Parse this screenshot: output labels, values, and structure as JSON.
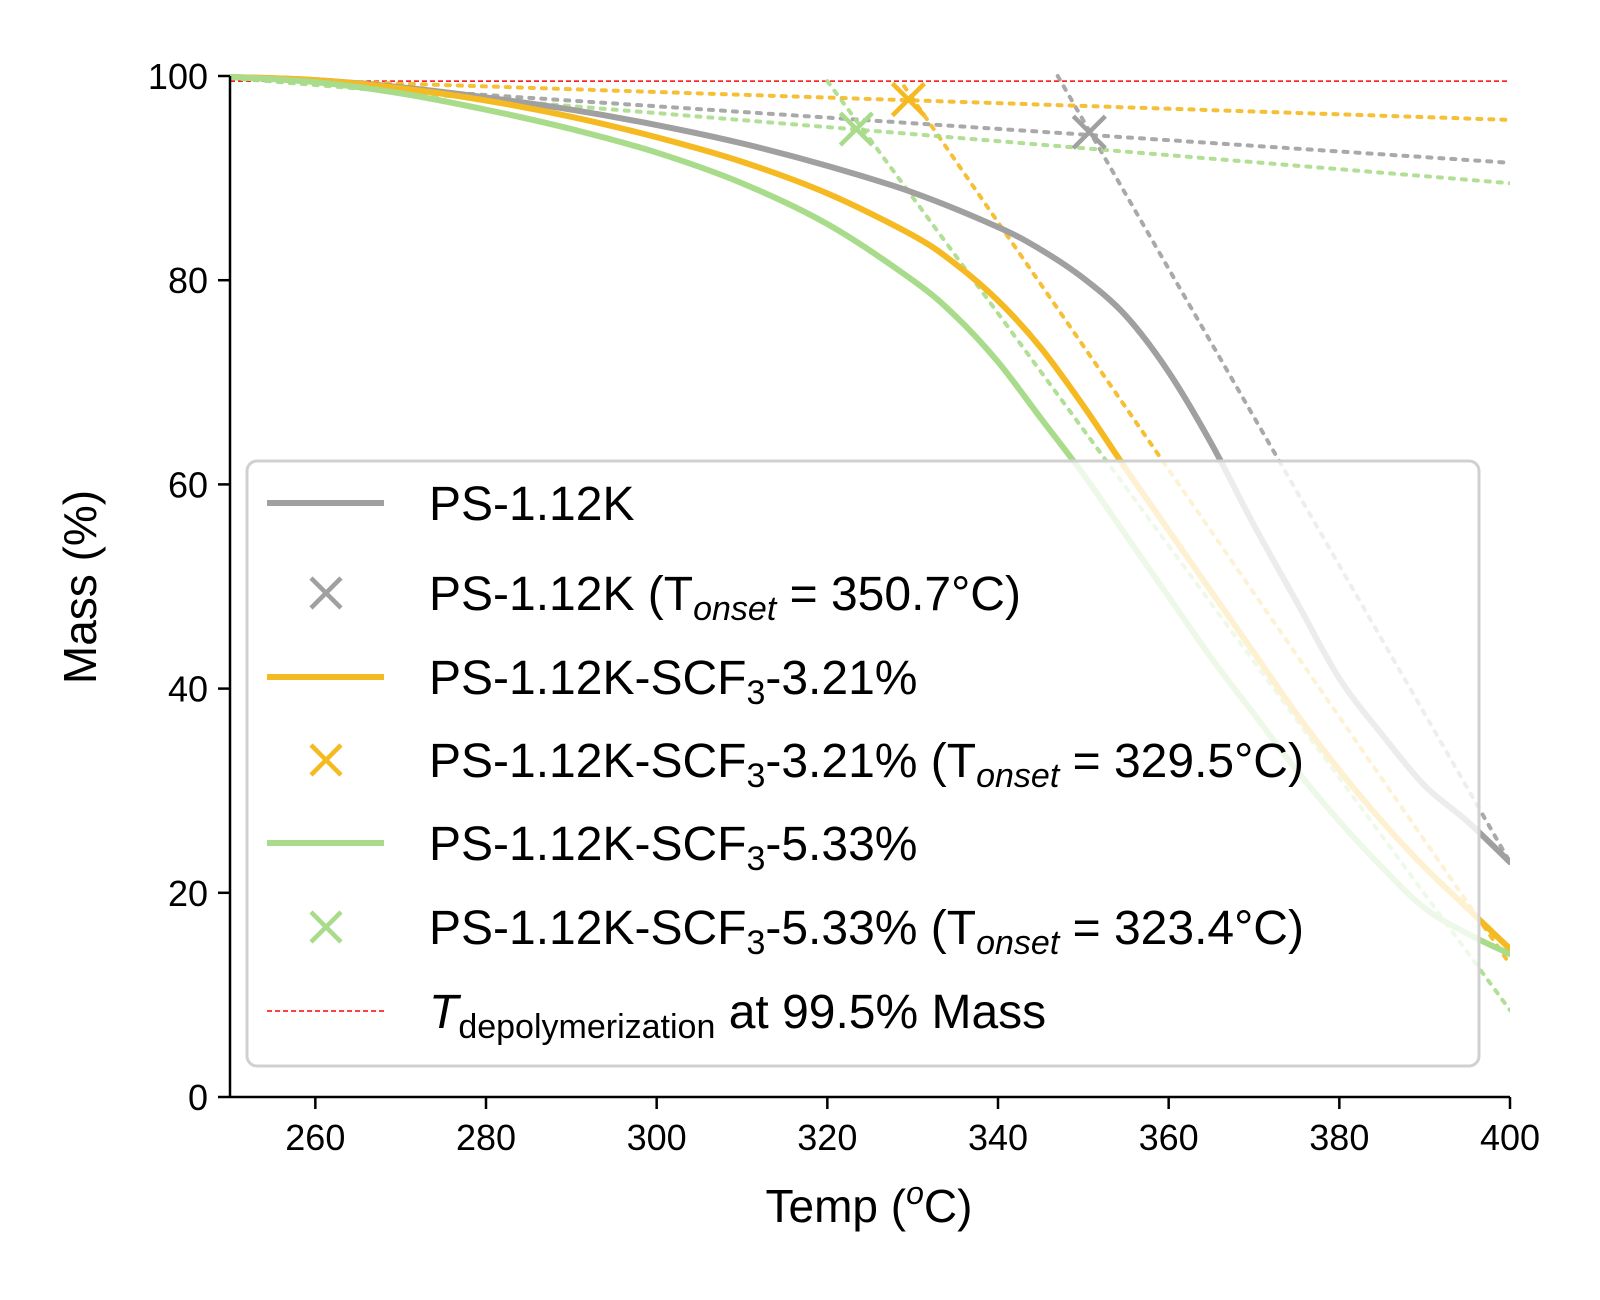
{
  "chart_data": {
    "type": "line",
    "xlabel": "Temp (",
    "xlabel_sup": "o",
    "xlabel_tail": "C)",
    "ylabel": "Mass (%)",
    "xlim": [
      250,
      400
    ],
    "ylim": [
      0,
      100
    ],
    "xticks": [
      260,
      280,
      300,
      320,
      340,
      360,
      380,
      400
    ],
    "yticks": [
      0,
      20,
      40,
      60,
      80,
      100
    ],
    "grid": false,
    "legend_position": "lower-left",
    "reference_line": {
      "y": 99.5,
      "color": "#ff0000",
      "label_italic": "T",
      "label_sub": "depolymerization",
      "label_tail": " at 99.5% Mass"
    },
    "series": [
      {
        "name": "PS-1.12K",
        "color": "#a0a0a0",
        "x": [
          250,
          260,
          270,
          280,
          290,
          300,
          310,
          320,
          330,
          340,
          345,
          350,
          355,
          360,
          365,
          370,
          375,
          380,
          385,
          390,
          395,
          400
        ],
        "values": [
          99.9,
          99.6,
          98.9,
          97.9,
          96.7,
          95.2,
          93.4,
          91.2,
          88.6,
          85.2,
          83.0,
          80.2,
          76.5,
          71.0,
          64.0,
          56.0,
          48.5,
          41.0,
          35.5,
          30.5,
          27.0,
          23.0
        ],
        "onset": {
          "label_prefix": "PS-1.12K (T",
          "label_sub": "onset",
          "label_suffix": " = 350.7°C)",
          "x": 350.7,
          "y": 94.5
        },
        "tangents": [
          {
            "x": [
              250,
              400
            ],
            "y": [
              99.8,
              91.5
            ]
          },
          {
            "x": [
              347,
              400
            ],
            "y": [
              100.0,
              23.0
            ]
          }
        ]
      },
      {
        "name": "PS-1.12K-SCF",
        "name_sub": "3",
        "name_tail": "-3.21%",
        "color": "#f5b921",
        "x": [
          250,
          260,
          270,
          280,
          290,
          300,
          310,
          320,
          330,
          335,
          340,
          345,
          350,
          355,
          360,
          365,
          370,
          375,
          380,
          385,
          390,
          395,
          400
        ],
        "values": [
          99.9,
          99.6,
          98.8,
          97.6,
          96.0,
          94.0,
          91.6,
          88.5,
          84.4,
          81.6,
          78.0,
          73.4,
          67.7,
          61.5,
          55.5,
          49.5,
          43.5,
          37.5,
          32.0,
          27.0,
          22.5,
          18.5,
          14.5
        ],
        "onset": {
          "label_prefix": "PS-1.12K-SCF",
          "label_mid_sub": "3",
          "label_mid": "-3.21% (T",
          "label_sub": "onset",
          "label_suffix": " = 329.5°C)",
          "x": 329.5,
          "y": 97.7
        },
        "tangents": [
          {
            "x": [
              250,
              400
            ],
            "y": [
              99.8,
              95.7
            ]
          },
          {
            "x": [
              329,
              400
            ],
            "y": [
              99.0,
              13.0
            ]
          }
        ]
      },
      {
        "name": "PS-1.12K-SCF",
        "name_sub": "3",
        "name_tail": "-5.33%",
        "color": "#a8dc8a",
        "x": [
          250,
          260,
          270,
          280,
          290,
          300,
          310,
          320,
          330,
          335,
          340,
          345,
          350,
          355,
          360,
          365,
          370,
          375,
          380,
          385,
          390,
          395,
          400
        ],
        "values": [
          99.9,
          99.4,
          98.3,
          96.7,
          94.8,
          92.5,
          89.5,
          85.5,
          80.0,
          76.5,
          72.0,
          66.5,
          61.0,
          55.0,
          49.0,
          43.0,
          37.5,
          32.0,
          27.0,
          22.5,
          18.5,
          16.0,
          14.0
        ],
        "onset": {
          "label_prefix": "PS-1.12K-SCF",
          "label_mid_sub": "3",
          "label_mid": "-5.33% (T",
          "label_sub": "onset",
          "label_suffix": " = 323.4°C)",
          "x": 323.4,
          "y": 94.8
        },
        "tangents": [
          {
            "x": [
              250,
              400
            ],
            "y": [
              99.8,
              89.5
            ]
          },
          {
            "x": [
              320,
              400
            ],
            "y": [
              99.5,
              8.5
            ]
          }
        ]
      }
    ]
  }
}
